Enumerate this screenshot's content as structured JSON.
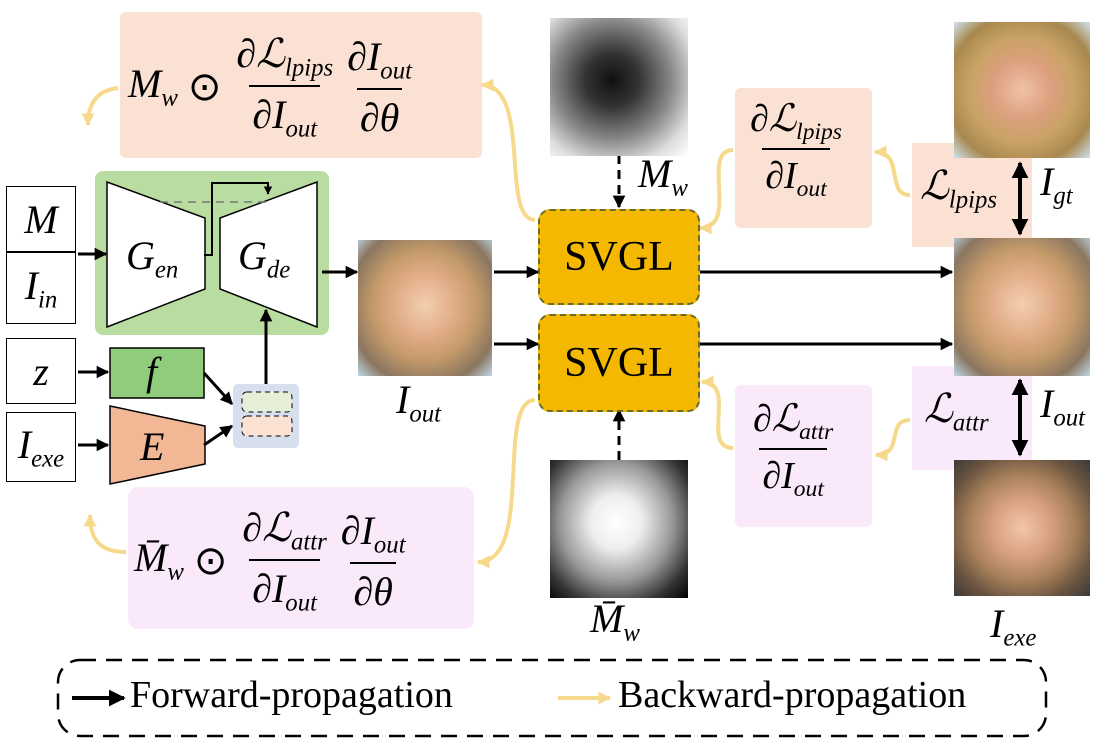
{
  "inputs": {
    "mask_symbol": "M",
    "input_image": {
      "base": "I",
      "sub": "in"
    },
    "noise": "z",
    "exemplar": {
      "base": "I",
      "sub": "exe"
    }
  },
  "blocks": {
    "encoder": {
      "base": "G",
      "sub": "en"
    },
    "decoder": {
      "base": "G",
      "sub": "de"
    },
    "mapping": "f",
    "exemplar_encoder": "E",
    "svgl_top": "SVGL",
    "svgl_bottom": "SVGL"
  },
  "labels": {
    "output": {
      "base": "I",
      "sub": "out"
    },
    "mask_weight": {
      "base": "M",
      "sub": "w"
    },
    "mask_weight_inv": {
      "base": "M̄",
      "sub": "w"
    },
    "ground_truth": {
      "base": "I",
      "sub": "gt"
    },
    "output_right": {
      "base": "I",
      "sub": "out"
    },
    "exemplar_right": {
      "base": "I",
      "sub": "exe"
    },
    "loss_lpips": {
      "base": "ℒ",
      "sub": "lpips"
    },
    "loss_attr": {
      "base": "ℒ",
      "sub": "attr"
    }
  },
  "formulas": {
    "top_left": {
      "weight": "M",
      "weight_sub": "w",
      "odot": "⊙",
      "partial": "∂",
      "loss": "ℒ",
      "loss_sub": "lpips",
      "I": "I",
      "I_sub": "out",
      "theta": "θ"
    },
    "bottom_left": {
      "weight": "M̄",
      "weight_sub": "w",
      "odot": "⊙",
      "partial": "∂",
      "loss": "ℒ",
      "loss_sub": "attr",
      "I": "I",
      "I_sub": "out",
      "theta": "θ"
    },
    "right_top": {
      "partial": "∂",
      "loss": "ℒ",
      "loss_sub": "lpips",
      "I": "I",
      "I_sub": "out"
    },
    "right_bottom": {
      "partial": "∂",
      "loss": "ℒ",
      "loss_sub": "attr",
      "I": "I",
      "I_sub": "out"
    }
  },
  "legend": {
    "forward": "Forward-propagation",
    "backward": "Backward-propagation"
  },
  "colors": {
    "lpips_panel": "#fbe1d3",
    "attr_panel": "#f9e9fb",
    "generator_panel": "#b9dca0",
    "mapping_block": "#8fcc7c",
    "encoder_block": "#f2b896",
    "svgl_fill": "#f5b800",
    "fusion_panel": "#d7dfee",
    "backward_arrow": "#f7d98c",
    "forward_arrow": "#000000"
  }
}
